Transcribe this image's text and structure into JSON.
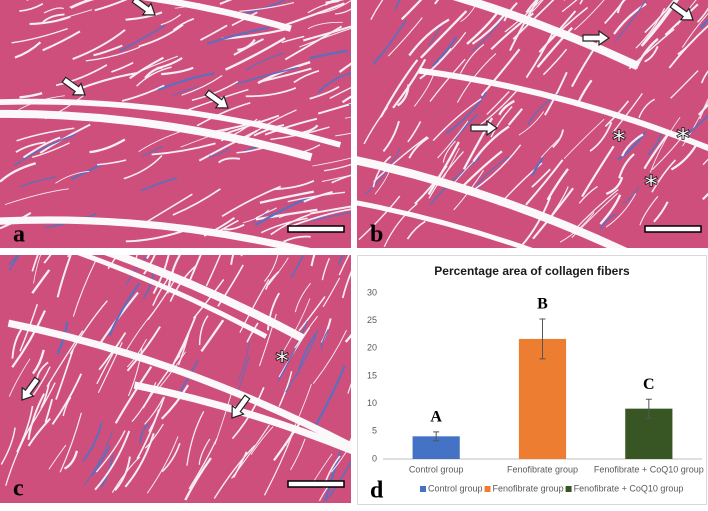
{
  "panels": [
    {
      "label": "a"
    },
    {
      "label": "b",
      "marks": [
        "*",
        "*",
        "*"
      ]
    },
    {
      "label": "c",
      "marks": [
        "*"
      ]
    },
    {
      "label": "d"
    }
  ],
  "chart_data": {
    "type": "bar",
    "title": "Percentage area of collagen fibers",
    "categories": [
      "Control group",
      "Fenofibrate group",
      "Fenofibrate + CoQ10 group"
    ],
    "values": [
      4.1,
      21.7,
      9.1
    ],
    "errors": [
      0.8,
      3.6,
      1.7
    ],
    "annotations": [
      "A",
      "B",
      "C"
    ],
    "colors": [
      "#4472c4",
      "#ed7d31",
      "#375623"
    ],
    "ylim": [
      0,
      30
    ],
    "yticks": [
      0,
      5,
      10,
      15,
      20,
      25,
      30
    ],
    "grid": false,
    "legend": "bottom"
  }
}
